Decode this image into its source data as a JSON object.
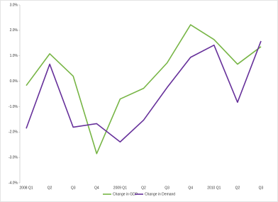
{
  "chart_data": {
    "type": "line",
    "categories": [
      "2008 Q1",
      "Q2",
      "Q3",
      "Q4",
      "2009 Q1",
      "Q2",
      "Q3",
      "Q4",
      "2010 Q1",
      "Q2",
      "Q3"
    ],
    "series": [
      {
        "name": "Change in GDP",
        "color": "#77b545",
        "values": [
          -0.17,
          1.08,
          0.2,
          -2.85,
          -0.7,
          -0.28,
          0.72,
          2.22,
          1.64,
          0.67,
          1.36
        ]
      },
      {
        "name": "Change in Demand",
        "color": "#66309a",
        "values": [
          -1.86,
          0.67,
          -1.81,
          -1.67,
          -2.39,
          -1.53,
          -0.25,
          0.94,
          1.42,
          -0.83,
          1.58
        ]
      }
    ],
    "ylim": [
      -4,
      3
    ],
    "yticks": [
      {
        "value": -4,
        "label": "-4.0%"
      },
      {
        "value": -3,
        "label": "-3.0%"
      },
      {
        "value": -2,
        "label": "-2.0%"
      },
      {
        "value": -1,
        "label": "-1.0%"
      },
      {
        "value": 0,
        "label": "0.0%"
      },
      {
        "value": 1,
        "label": "1.0%"
      },
      {
        "value": 2,
        "label": "2.0%"
      },
      {
        "value": 3,
        "label": "3.0%"
      }
    ],
    "grid": false,
    "legend": "bottom"
  }
}
